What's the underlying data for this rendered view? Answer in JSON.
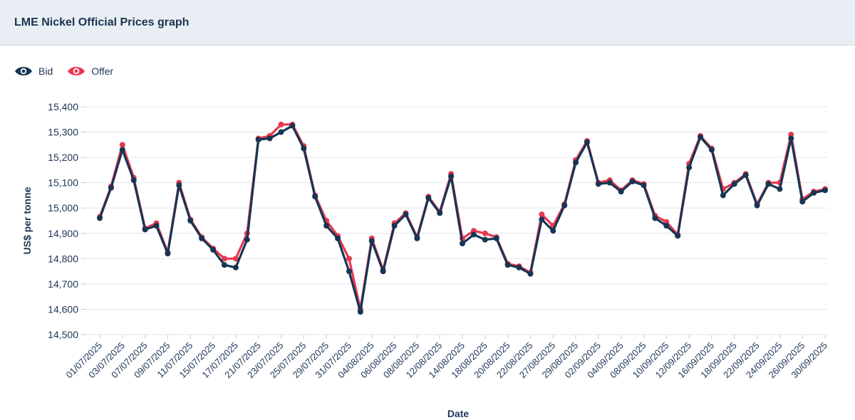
{
  "header": {
    "title": "LME Nickel Official Prices graph"
  },
  "legend": {
    "bid_label": "Bid",
    "offer_label": "Offer"
  },
  "colors": {
    "bid": "#163554",
    "offer": "#e8384f",
    "grid": "#e2e5f0",
    "header_bg": "#e9eef4"
  },
  "chart_data": {
    "type": "line",
    "title": "LME Nickel Official Prices graph",
    "xlabel": "Date",
    "ylabel": "US$ per tonne",
    "ylim": [
      14500,
      15400
    ],
    "yticks": [
      14500,
      14600,
      14700,
      14800,
      14900,
      15000,
      15100,
      15200,
      15300,
      15400
    ],
    "ytick_labels": [
      "14,500",
      "14,600",
      "14,700",
      "14,800",
      "14,900",
      "15,000",
      "15,100",
      "15,200",
      "15,300",
      "15,400"
    ],
    "x": [
      "01/07/2025",
      "02/07/2025",
      "03/07/2025",
      "04/07/2025",
      "07/07/2025",
      "08/07/2025",
      "09/07/2025",
      "10/07/2025",
      "11/07/2025",
      "14/07/2025",
      "15/07/2025",
      "16/07/2025",
      "17/07/2025",
      "18/07/2025",
      "21/07/2025",
      "22/07/2025",
      "23/07/2025",
      "24/07/2025",
      "25/07/2025",
      "28/07/2025",
      "29/07/2025",
      "30/07/2025",
      "31/07/2025",
      "01/08/2025",
      "04/08/2025",
      "05/08/2025",
      "06/08/2025",
      "07/08/2025",
      "08/08/2025",
      "11/08/2025",
      "12/08/2025",
      "13/08/2025",
      "14/08/2025",
      "15/08/2025",
      "18/08/2025",
      "19/08/2025",
      "20/08/2025",
      "21/08/2025",
      "22/08/2025",
      "26/08/2025",
      "27/08/2025",
      "28/08/2025",
      "29/08/2025",
      "01/09/2025",
      "02/09/2025",
      "03/09/2025",
      "04/09/2025",
      "05/09/2025",
      "08/09/2025",
      "09/09/2025",
      "10/09/2025",
      "11/09/2025",
      "12/09/2025",
      "15/09/2025",
      "16/09/2025",
      "17/09/2025",
      "18/09/2025",
      "19/09/2025",
      "22/09/2025",
      "23/09/2025",
      "24/09/2025",
      "25/09/2025",
      "26/09/2025",
      "29/09/2025",
      "30/09/2025"
    ],
    "x_tick_labels": [
      "01/07/2025",
      "03/07/2025",
      "07/07/2025",
      "09/07/2025",
      "11/07/2025",
      "15/07/2025",
      "17/07/2025",
      "21/07/2025",
      "23/07/2025",
      "25/07/2025",
      "29/07/2025",
      "31/07/2025",
      "04/08/2025",
      "06/08/2025",
      "08/08/2025",
      "12/08/2025",
      "14/08/2025",
      "18/08/2025",
      "20/08/2025",
      "22/08/2025",
      "27/08/2025",
      "29/08/2025",
      "02/09/2025",
      "04/09/2025",
      "08/09/2025",
      "10/09/2025",
      "12/09/2025",
      "16/09/2025",
      "18/09/2025",
      "22/09/2025",
      "24/09/2025",
      "26/09/2025",
      "30/09/2025"
    ],
    "grid": true,
    "legend_position": "top-left",
    "series": [
      {
        "name": "Offer",
        "color": "#e8384f",
        "values": [
          14965,
          15085,
          15250,
          15120,
          14920,
          14940,
          14825,
          15100,
          14955,
          14885,
          14840,
          14800,
          14800,
          14900,
          15275,
          15285,
          15330,
          15330,
          15245,
          15050,
          14950,
          14890,
          14800,
          14600,
          14880,
          14755,
          14940,
          14980,
          14885,
          15045,
          14985,
          15135,
          14880,
          14910,
          14900,
          14885,
          14780,
          14770,
          14745,
          14975,
          14930,
          15015,
          15190,
          15265,
          15100,
          15110,
          15070,
          15110,
          15095,
          14970,
          14945,
          14895,
          15175,
          15285,
          15235,
          15075,
          15100,
          15135,
          15015,
          15100,
          15100,
          15290,
          15035,
          15065,
          15075
        ]
      },
      {
        "name": "Bid",
        "color": "#163554",
        "values": [
          14960,
          15080,
          15230,
          15110,
          14915,
          14930,
          14820,
          15090,
          14950,
          14880,
          14835,
          14775,
          14765,
          14875,
          15270,
          15275,
          15300,
          15325,
          15235,
          15045,
          14930,
          14880,
          14750,
          14590,
          14870,
          14750,
          14930,
          14975,
          14880,
          15040,
          14980,
          15125,
          14860,
          14895,
          14875,
          14880,
          14775,
          14765,
          14740,
          14955,
          14910,
          15010,
          15180,
          15260,
          15095,
          15100,
          15065,
          15105,
          15090,
          14960,
          14930,
          14890,
          15160,
          15280,
          15230,
          15050,
          15095,
          15130,
          15010,
          15095,
          15075,
          15275,
          15025,
          15060,
          15070
        ]
      }
    ]
  }
}
